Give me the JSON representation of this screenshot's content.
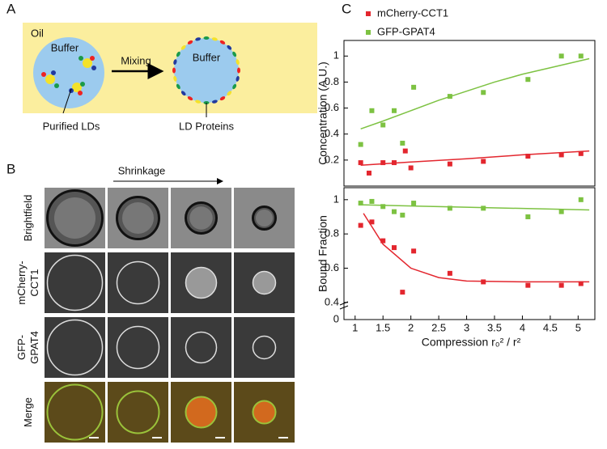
{
  "panel_a": {
    "label": "A",
    "oil": "Oil",
    "buffer_left": "Buffer",
    "mixing": "Mixing",
    "buffer_right": "Buffer",
    "caption_left": "Purified LDs",
    "caption_right": "LD Proteins"
  },
  "panel_b": {
    "label": "B",
    "shrinkage": "Shrinkage",
    "rows": [
      [
        "Brightfield"
      ],
      [
        "mCherry-",
        "CCT1"
      ],
      [
        "GFP-",
        "GPAT4"
      ],
      [
        "Merge"
      ]
    ]
  },
  "panel_c": {
    "label": "C"
  },
  "chart_data": [
    {
      "type": "scatter",
      "ylabel": "Concentration (A.U.)",
      "xlim": [
        0.8,
        5.3
      ],
      "ylim": [
        0,
        1.12
      ],
      "yticks": [
        0.2,
        0.4,
        0.6,
        0.8,
        1
      ],
      "series": [
        {
          "name": "mCherry-CCT1",
          "color": "#e3262e",
          "x": [
            1.1,
            1.25,
            1.5,
            1.7,
            1.9,
            2.0,
            2.7,
            3.3,
            4.1,
            4.7,
            5.05
          ],
          "values": [
            0.18,
            0.1,
            0.18,
            0.18,
            0.27,
            0.14,
            0.17,
            0.19,
            0.23,
            0.24,
            0.25
          ],
          "fit_x": [
            1.1,
            2,
            3,
            4,
            5.2
          ],
          "fit_values": [
            0.16,
            0.185,
            0.21,
            0.24,
            0.27
          ]
        },
        {
          "name": "GFP-GPAT4",
          "color": "#7dc242",
          "x": [
            1.1,
            1.3,
            1.5,
            1.7,
            1.85,
            2.05,
            2.7,
            3.3,
            4.1,
            4.7,
            5.05
          ],
          "values": [
            0.32,
            0.58,
            0.47,
            0.58,
            0.33,
            0.76,
            0.69,
            0.72,
            0.82,
            1.0,
            1.0
          ],
          "fit_x": [
            1.1,
            1.5,
            2,
            2.5,
            3,
            3.5,
            4,
            4.5,
            5.2
          ],
          "fit_values": [
            0.44,
            0.5,
            0.58,
            0.66,
            0.73,
            0.8,
            0.86,
            0.91,
            0.98
          ]
        }
      ]
    },
    {
      "type": "scatter",
      "ylabel": "Bound Fraction",
      "xlabel": "Compression r₀² / r²",
      "xlim": [
        0.8,
        5.3
      ],
      "xticks": [
        1,
        1.5,
        2,
        2.5,
        3,
        3.5,
        4,
        4.5,
        5
      ],
      "ylim": [
        0.3,
        1.07
      ],
      "yticks": [
        0.4,
        0.6,
        0.8,
        1
      ],
      "y_break_tick": 0,
      "series": [
        {
          "color": "#e3262e",
          "x": [
            1.1,
            1.3,
            1.5,
            1.7,
            1.85,
            2.05,
            2.7,
            3.3,
            4.1,
            4.7,
            5.05
          ],
          "values": [
            0.85,
            0.87,
            0.76,
            0.72,
            0.46,
            0.7,
            0.57,
            0.52,
            0.5,
            0.5,
            0.51
          ],
          "fit_x": [
            1.15,
            1.5,
            2,
            2.5,
            3,
            4,
            5.2
          ],
          "fit_values": [
            0.92,
            0.74,
            0.6,
            0.545,
            0.525,
            0.52,
            0.52
          ]
        },
        {
          "color": "#7dc242",
          "x": [
            1.1,
            1.3,
            1.5,
            1.7,
            1.85,
            2.05,
            2.7,
            3.3,
            4.1,
            4.7,
            5.05
          ],
          "values": [
            0.98,
            0.99,
            0.96,
            0.93,
            0.91,
            0.98,
            0.95,
            0.95,
            0.9,
            0.93,
            1.0
          ],
          "fit_x": [
            1.1,
            5.2
          ],
          "fit_values": [
            0.97,
            0.94
          ]
        }
      ]
    }
  ]
}
